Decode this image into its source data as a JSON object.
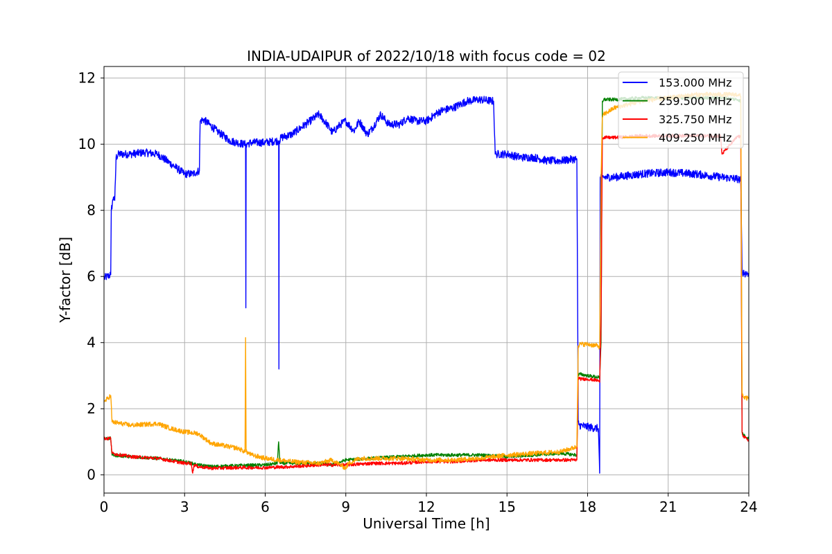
{
  "chart_data": {
    "type": "line",
    "title": "INDIA-UDAIPUR of 2022/10/18 with focus code = 02",
    "xlabel": "Universal Time [h]",
    "ylabel": "Y-factor [dB]",
    "xlim": [
      0,
      24
    ],
    "ylim": [
      -0.55,
      12.35
    ],
    "xticks": [
      0,
      3,
      6,
      9,
      12,
      15,
      18,
      21,
      24
    ],
    "yticks": [
      0,
      2,
      4,
      6,
      8,
      10,
      12
    ],
    "grid": true,
    "legend_position": "top-right",
    "series": [
      {
        "name": "153.000 MHz",
        "color": "#0000ff",
        "noise": 0.12,
        "x": [
          0,
          0.25,
          0.27,
          0.35,
          0.4,
          0.45,
          0.55,
          1.0,
          1.5,
          2.0,
          2.5,
          3.0,
          3.3,
          3.55,
          3.58,
          3.7,
          4.2,
          4.7,
          5.2,
          5.27,
          5.28,
          5.29,
          5.5,
          6.0,
          6.4,
          6.5,
          6.51,
          6.52,
          6.6,
          7.0,
          7.5,
          8.0,
          8.3,
          8.5,
          8.8,
          9.0,
          9.3,
          9.5,
          9.8,
          10.0,
          10.3,
          10.6,
          11.0,
          11.3,
          11.6,
          12.0,
          12.5,
          13.0,
          13.5,
          14.0,
          14.5,
          14.56,
          14.6,
          15.0,
          15.5,
          16.0,
          16.5,
          17.0,
          17.5,
          17.6,
          17.65,
          17.7,
          18.0,
          18.4,
          18.45,
          18.47,
          18.55,
          18.6,
          19.0,
          20.0,
          21.0,
          22.0,
          23.0,
          23.6,
          23.7,
          23.75,
          23.8,
          24.0
        ],
        "y": [
          5.95,
          6.05,
          8.0,
          8.4,
          8.3,
          9.6,
          9.7,
          9.7,
          9.75,
          9.7,
          9.4,
          9.1,
          9.1,
          9.2,
          10.7,
          10.75,
          10.4,
          10.1,
          10.0,
          10.0,
          5.05,
          10.0,
          10.05,
          10.05,
          10.1,
          10.1,
          3.2,
          10.1,
          10.2,
          10.3,
          10.6,
          10.9,
          10.6,
          10.35,
          10.6,
          10.7,
          10.4,
          10.7,
          10.3,
          10.5,
          10.9,
          10.6,
          10.6,
          10.8,
          10.7,
          10.7,
          11.0,
          11.1,
          11.3,
          11.35,
          11.3,
          9.7,
          9.7,
          9.7,
          9.6,
          9.6,
          9.5,
          9.5,
          9.55,
          9.55,
          1.6,
          1.5,
          1.45,
          1.4,
          0.05,
          9.0,
          9.0,
          9.0,
          9.0,
          9.1,
          9.15,
          9.1,
          9.0,
          8.95,
          8.9,
          6.2,
          6.1,
          6.1
        ]
      },
      {
        "name": "259.500 MHz",
        "color": "#008000",
        "noise": 0.05,
        "x": [
          0,
          0.25,
          0.3,
          1.0,
          2.0,
          3.0,
          3.5,
          4.0,
          5.0,
          6.0,
          6.45,
          6.5,
          6.55,
          7.0,
          8.0,
          8.5,
          9.0,
          10.0,
          11.0,
          12.0,
          13.0,
          14.0,
          15.0,
          16.0,
          17.0,
          17.6,
          17.65,
          17.7,
          18.0,
          18.4,
          18.45,
          18.5,
          18.55,
          18.6,
          19.0,
          20.0,
          21.0,
          22.0,
          23.0,
          23.6,
          23.7,
          23.75,
          23.8,
          24.0
        ],
        "y": [
          1.1,
          1.1,
          0.6,
          0.55,
          0.5,
          0.4,
          0.3,
          0.25,
          0.28,
          0.3,
          0.35,
          1.0,
          0.35,
          0.35,
          0.35,
          0.3,
          0.45,
          0.5,
          0.55,
          0.6,
          0.6,
          0.6,
          0.55,
          0.6,
          0.65,
          0.6,
          3.0,
          3.05,
          3.0,
          2.95,
          2.9,
          4.0,
          11.3,
          11.35,
          11.35,
          11.4,
          11.4,
          11.4,
          11.4,
          11.35,
          11.3,
          1.3,
          1.2,
          1.1
        ]
      },
      {
        "name": "325.750 MHz",
        "color": "#ff0000",
        "noise": 0.05,
        "x": [
          0,
          0.25,
          0.3,
          1.0,
          2.0,
          3.0,
          3.25,
          3.3,
          3.35,
          3.5,
          4.0,
          5.0,
          6.0,
          7.0,
          8.0,
          9.0,
          10.0,
          11.0,
          12.0,
          13.0,
          14.0,
          15.0,
          16.0,
          17.0,
          17.6,
          17.65,
          17.7,
          18.0,
          18.4,
          18.45,
          18.5,
          18.55,
          18.6,
          19.0,
          20.0,
          21.0,
          22.0,
          22.9,
          22.95,
          23.0,
          23.6,
          23.7,
          23.75,
          23.8,
          24.0
        ],
        "y": [
          1.1,
          1.1,
          0.65,
          0.55,
          0.5,
          0.35,
          0.35,
          0.05,
          0.3,
          0.25,
          0.2,
          0.22,
          0.22,
          0.25,
          0.3,
          0.3,
          0.35,
          0.35,
          0.4,
          0.4,
          0.45,
          0.45,
          0.45,
          0.45,
          0.45,
          2.95,
          2.9,
          2.9,
          2.85,
          2.8,
          4.5,
          10.2,
          10.2,
          10.2,
          10.25,
          10.25,
          10.25,
          10.25,
          10.25,
          9.7,
          10.25,
          10.2,
          1.3,
          1.15,
          1.05
        ]
      },
      {
        "name": "409.250 MHz",
        "color": "#ffa500",
        "noise": 0.07,
        "x": [
          0,
          0.25,
          0.3,
          1.0,
          2.0,
          2.5,
          3.0,
          3.5,
          4.0,
          5.0,
          5.25,
          5.27,
          5.29,
          5.5,
          6.0,
          7.0,
          8.0,
          8.5,
          8.8,
          9.0,
          9.1,
          9.5,
          10.0,
          11.0,
          12.0,
          13.0,
          14.0,
          15.0,
          16.0,
          17.0,
          17.6,
          17.65,
          17.7,
          18.0,
          18.4,
          18.45,
          18.5,
          18.55,
          18.6,
          19.0,
          20.0,
          21.0,
          22.0,
          23.0,
          23.6,
          23.7,
          23.75,
          23.8,
          24.0
        ],
        "y": [
          2.2,
          2.4,
          1.6,
          1.5,
          1.55,
          1.4,
          1.3,
          1.25,
          0.95,
          0.8,
          0.7,
          4.15,
          0.7,
          0.6,
          0.5,
          0.4,
          0.35,
          0.45,
          0.3,
          0.2,
          0.35,
          0.5,
          0.5,
          0.5,
          0.45,
          0.45,
          0.5,
          0.6,
          0.65,
          0.7,
          0.85,
          3.9,
          3.95,
          3.95,
          3.9,
          3.85,
          9.0,
          10.8,
          10.9,
          11.1,
          11.3,
          11.4,
          11.5,
          11.5,
          11.5,
          11.45,
          2.5,
          2.35,
          2.3
        ]
      }
    ]
  }
}
